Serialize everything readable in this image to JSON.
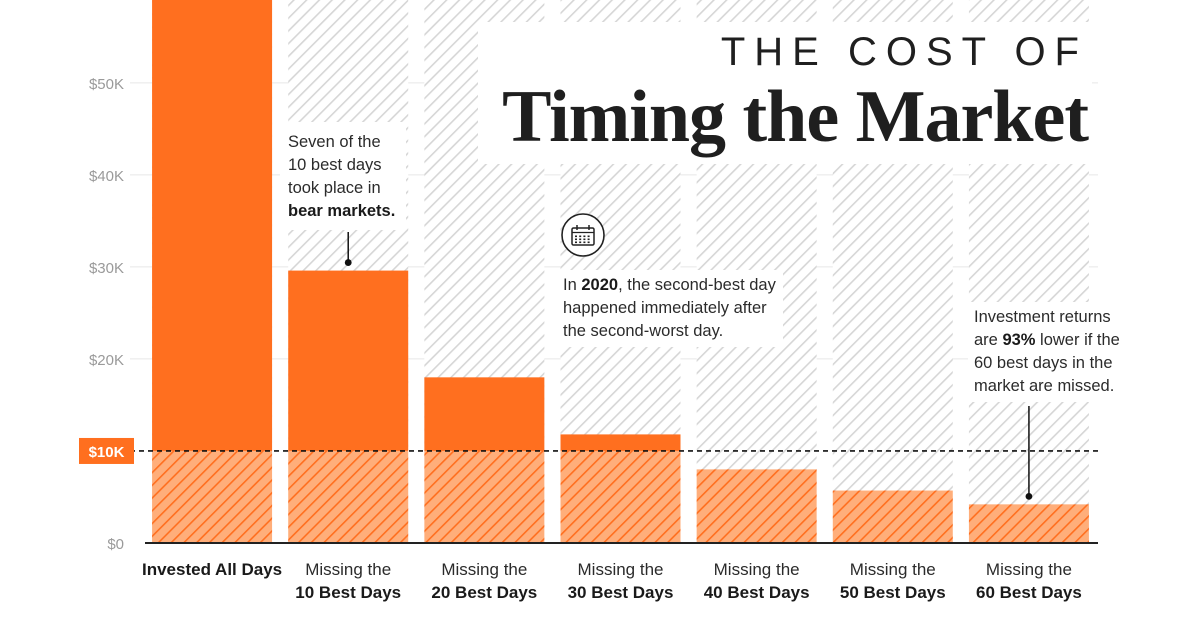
{
  "title": {
    "line1": "THE COST OF",
    "line2": "Timing the Market"
  },
  "colors": {
    "bar": "#ff6f1f",
    "bar_hatch_bg": "#ffae7a",
    "ghost_hatch": "#d6d6d6",
    "axis_text": "#9a9a9a",
    "baseline_badge": "#ff6f1f",
    "text": "#1a1a1a"
  },
  "notes": {
    "bear": {
      "pre": "Seven of the 10 best days took place in ",
      "bold": "bear markets."
    },
    "covid": {
      "pre": "In ",
      "bold": "2020",
      "post": ", the second-best day happened immediately after the second-worst day.",
      "icon": "calendar-icon"
    },
    "returns": {
      "pre": "Investment returns are ",
      "bold": "93%",
      "post": " lower if the 60 best days in the market are missed."
    }
  },
  "chart_data": {
    "type": "bar",
    "categories": [
      "Invested All Days",
      "Missing the 10 Best Days",
      "Missing the 20 Best Days",
      "Missing the 30 Best Days",
      "Missing the 40 Best Days",
      "Missing the 50 Best Days",
      "Missing the 60 Best Days"
    ],
    "category_lines": [
      [
        "Invested All Days",
        ""
      ],
      [
        "Missing the",
        "10 Best Days"
      ],
      [
        "Missing the",
        "20 Best Days"
      ],
      [
        "Missing the",
        "30 Best Days"
      ],
      [
        "Missing the",
        "40 Best Days"
      ],
      [
        "Missing the",
        "50 Best Days"
      ],
      [
        "Missing the",
        "60 Best Days"
      ]
    ],
    "values": [
      64000,
      29600,
      18000,
      11800,
      8000,
      5700,
      4200
    ],
    "ylim": [
      0,
      59000
    ],
    "yticks": [
      0,
      10000,
      20000,
      30000,
      40000,
      50000
    ],
    "ytick_labels": [
      "$0",
      "$10K",
      "$20K",
      "$30K",
      "$40K",
      "$50K"
    ],
    "baseline_value": 10000,
    "baseline_label": "$10K",
    "xlabel": "",
    "ylabel": "",
    "grid": true
  }
}
